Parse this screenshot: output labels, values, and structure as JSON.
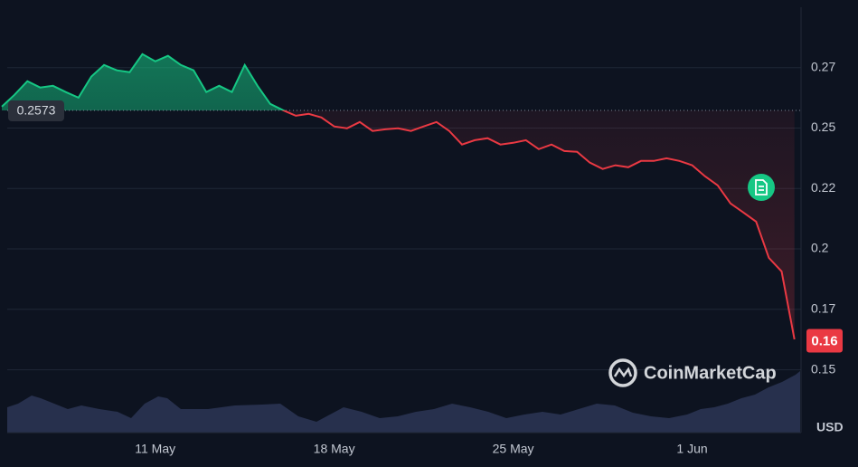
{
  "chart_data": {
    "type": "line",
    "categories": [
      null,
      null,
      null,
      null,
      null,
      null,
      null,
      null,
      null,
      null,
      null,
      null,
      "11 May",
      null,
      null,
      null,
      null,
      null,
      null,
      null,
      null,
      null,
      null,
      null,
      null,
      null,
      "18 May",
      null,
      null,
      null,
      null,
      null,
      null,
      null,
      null,
      null,
      null,
      null,
      null,
      null,
      "25 May",
      null,
      null,
      null,
      null,
      null,
      null,
      null,
      null,
      null,
      null,
      null,
      null,
      null,
      "1 Jun",
      null,
      null,
      null,
      null,
      null,
      null,
      null,
      null
    ],
    "values": [
      0.2589,
      0.2638,
      0.2694,
      0.2668,
      0.2675,
      0.2649,
      0.2626,
      0.2713,
      0.2761,
      0.2739,
      0.2731,
      0.2806,
      0.2776,
      0.2799,
      0.2761,
      0.2739,
      0.2649,
      0.2675,
      0.2649,
      0.2761,
      0.2675,
      0.26,
      0.2574,
      0.2551,
      0.2559,
      0.2544,
      0.2507,
      0.2499,
      0.2525,
      0.2488,
      0.2495,
      0.2499,
      0.2488,
      0.2507,
      0.2525,
      0.2488,
      0.2432,
      0.245,
      0.2458,
      0.2432,
      0.2439,
      0.245,
      0.2413,
      0.2432,
      0.2405,
      0.2402,
      0.2357,
      0.2331,
      0.2346,
      0.2338,
      0.2364,
      0.2364,
      0.2375,
      0.2364,
      0.2346,
      0.2301,
      0.2263,
      0.2188,
      0.2151,
      0.2113,
      0.1963,
      0.1907,
      0.1626
    ],
    "ylim": [
      0.124,
      0.3
    ],
    "yticks": [
      0.15,
      {
        "value": 0.175,
        "label": "0.17"
      },
      0.2,
      {
        "value": 0.225,
        "label": "0.22"
      },
      0.25,
      {
        "value": 0.275,
        "label": "0.27"
      }
    ],
    "baseline": 0.2573,
    "current_price": {
      "value": 0.162,
      "label": "0.16"
    },
    "unit": "USD",
    "watermark": "CoinMarketCap",
    "colors": {
      "up": "#16c784",
      "down": "#ea3943"
    },
    "grid": true
  }
}
